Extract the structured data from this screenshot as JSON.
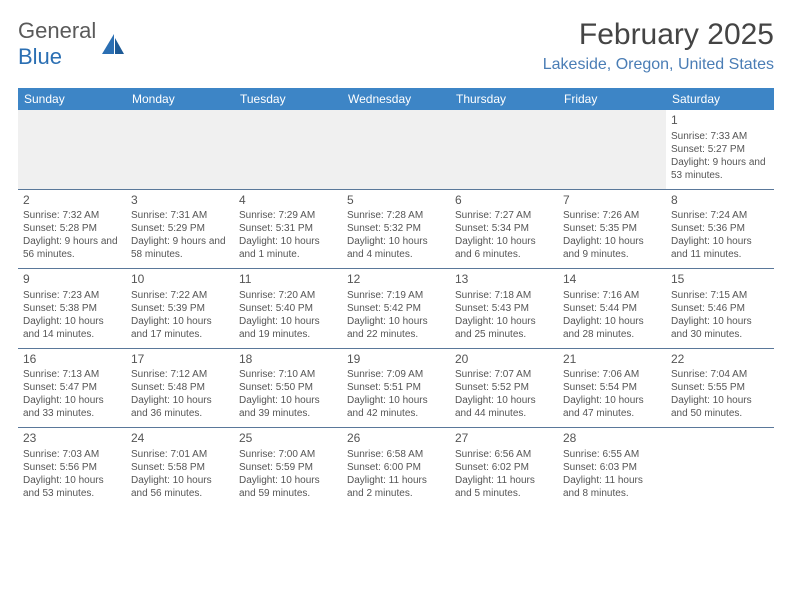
{
  "logo": {
    "part1": "General",
    "part2": "Blue"
  },
  "title": "February 2025",
  "location": "Lakeside, Oregon, United States",
  "colors": {
    "header_bg": "#3d85c6",
    "header_text": "#ffffff",
    "border": "#5a789a",
    "logo_accent": "#2b6fb3",
    "text": "#444444"
  },
  "day_names": [
    "Sunday",
    "Monday",
    "Tuesday",
    "Wednesday",
    "Thursday",
    "Friday",
    "Saturday"
  ],
  "weeks": [
    [
      null,
      null,
      null,
      null,
      null,
      null,
      {
        "n": "1",
        "sr": "7:33 AM",
        "ss": "5:27 PM",
        "dl": "9 hours and 53 minutes."
      }
    ],
    [
      {
        "n": "2",
        "sr": "7:32 AM",
        "ss": "5:28 PM",
        "dl": "9 hours and 56 minutes."
      },
      {
        "n": "3",
        "sr": "7:31 AM",
        "ss": "5:29 PM",
        "dl": "9 hours and 58 minutes."
      },
      {
        "n": "4",
        "sr": "7:29 AM",
        "ss": "5:31 PM",
        "dl": "10 hours and 1 minute."
      },
      {
        "n": "5",
        "sr": "7:28 AM",
        "ss": "5:32 PM",
        "dl": "10 hours and 4 minutes."
      },
      {
        "n": "6",
        "sr": "7:27 AM",
        "ss": "5:34 PM",
        "dl": "10 hours and 6 minutes."
      },
      {
        "n": "7",
        "sr": "7:26 AM",
        "ss": "5:35 PM",
        "dl": "10 hours and 9 minutes."
      },
      {
        "n": "8",
        "sr": "7:24 AM",
        "ss": "5:36 PM",
        "dl": "10 hours and 11 minutes."
      }
    ],
    [
      {
        "n": "9",
        "sr": "7:23 AM",
        "ss": "5:38 PM",
        "dl": "10 hours and 14 minutes."
      },
      {
        "n": "10",
        "sr": "7:22 AM",
        "ss": "5:39 PM",
        "dl": "10 hours and 17 minutes."
      },
      {
        "n": "11",
        "sr": "7:20 AM",
        "ss": "5:40 PM",
        "dl": "10 hours and 19 minutes."
      },
      {
        "n": "12",
        "sr": "7:19 AM",
        "ss": "5:42 PM",
        "dl": "10 hours and 22 minutes."
      },
      {
        "n": "13",
        "sr": "7:18 AM",
        "ss": "5:43 PM",
        "dl": "10 hours and 25 minutes."
      },
      {
        "n": "14",
        "sr": "7:16 AM",
        "ss": "5:44 PM",
        "dl": "10 hours and 28 minutes."
      },
      {
        "n": "15",
        "sr": "7:15 AM",
        "ss": "5:46 PM",
        "dl": "10 hours and 30 minutes."
      }
    ],
    [
      {
        "n": "16",
        "sr": "7:13 AM",
        "ss": "5:47 PM",
        "dl": "10 hours and 33 minutes."
      },
      {
        "n": "17",
        "sr": "7:12 AM",
        "ss": "5:48 PM",
        "dl": "10 hours and 36 minutes."
      },
      {
        "n": "18",
        "sr": "7:10 AM",
        "ss": "5:50 PM",
        "dl": "10 hours and 39 minutes."
      },
      {
        "n": "19",
        "sr": "7:09 AM",
        "ss": "5:51 PM",
        "dl": "10 hours and 42 minutes."
      },
      {
        "n": "20",
        "sr": "7:07 AM",
        "ss": "5:52 PM",
        "dl": "10 hours and 44 minutes."
      },
      {
        "n": "21",
        "sr": "7:06 AM",
        "ss": "5:54 PM",
        "dl": "10 hours and 47 minutes."
      },
      {
        "n": "22",
        "sr": "7:04 AM",
        "ss": "5:55 PM",
        "dl": "10 hours and 50 minutes."
      }
    ],
    [
      {
        "n": "23",
        "sr": "7:03 AM",
        "ss": "5:56 PM",
        "dl": "10 hours and 53 minutes."
      },
      {
        "n": "24",
        "sr": "7:01 AM",
        "ss": "5:58 PM",
        "dl": "10 hours and 56 minutes."
      },
      {
        "n": "25",
        "sr": "7:00 AM",
        "ss": "5:59 PM",
        "dl": "10 hours and 59 minutes."
      },
      {
        "n": "26",
        "sr": "6:58 AM",
        "ss": "6:00 PM",
        "dl": "11 hours and 2 minutes."
      },
      {
        "n": "27",
        "sr": "6:56 AM",
        "ss": "6:02 PM",
        "dl": "11 hours and 5 minutes."
      },
      {
        "n": "28",
        "sr": "6:55 AM",
        "ss": "6:03 PM",
        "dl": "11 hours and 8 minutes."
      },
      null
    ]
  ],
  "labels": {
    "sunrise": "Sunrise:",
    "sunset": "Sunset:",
    "daylight": "Daylight:"
  }
}
